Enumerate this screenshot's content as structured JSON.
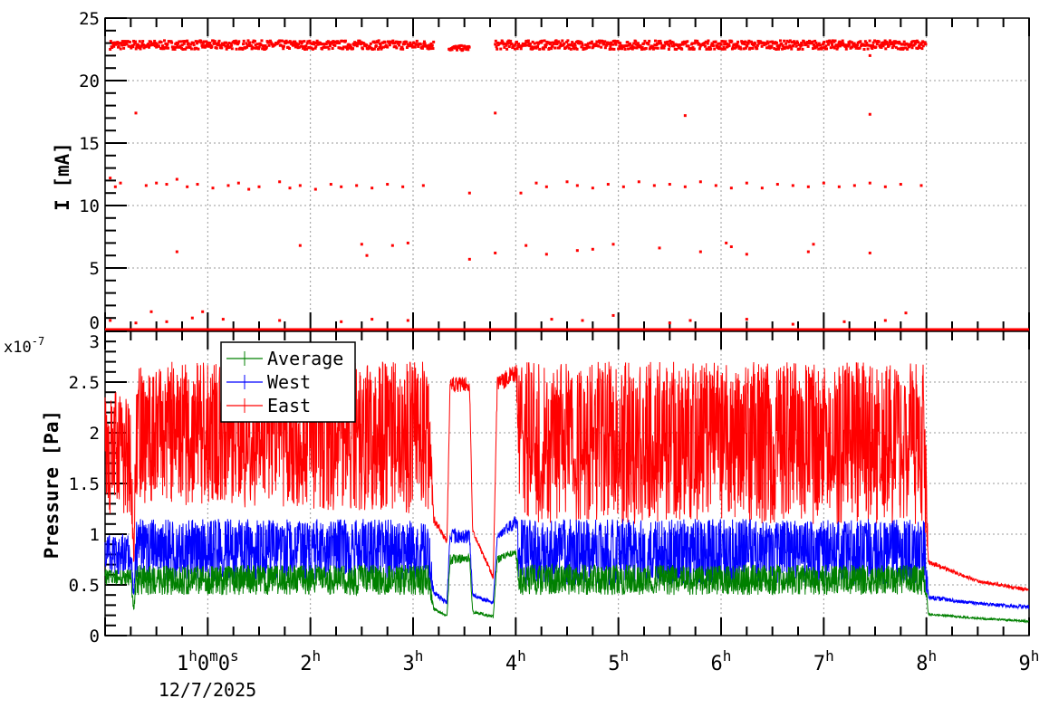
{
  "chart_data": [
    {
      "type": "scatter",
      "ylabel": "I [mA]",
      "xlim": [
        0,
        9
      ],
      "ylim": [
        0,
        25
      ],
      "grid": true,
      "yticks": [
        "0",
        "5",
        "10",
        "15",
        "20",
        "25"
      ],
      "colors": {
        "current": "#ff0000"
      },
      "series": [
        {
          "color": "#ff0000",
          "bands": [
            {
              "t": [
                0.05,
                3.2
              ],
              "lo": 22.5,
              "hi": 23.2
            },
            {
              "t": [
                3.35,
                3.55
              ],
              "lo": 22.4,
              "hi": 22.8
            },
            {
              "t": [
                3.8,
                8.0
              ],
              "lo": 22.5,
              "hi": 23.2
            }
          ],
          "baseline": {
            "t": [
              0,
              9
            ],
            "value": 0
          },
          "outliers": [
            [
              0.05,
              12.2
            ],
            [
              0.1,
              11.5
            ],
            [
              0.15,
              11.8
            ],
            [
              0.3,
              17.4
            ],
            [
              0.4,
              11.6
            ],
            [
              0.5,
              11.8
            ],
            [
              0.6,
              11.7
            ],
            [
              0.7,
              12.1
            ],
            [
              0.8,
              11.5
            ],
            [
              0.9,
              11.7
            ],
            [
              1.05,
              11.4
            ],
            [
              1.2,
              11.6
            ],
            [
              1.3,
              11.8
            ],
            [
              1.4,
              11.3
            ],
            [
              1.5,
              11.5
            ],
            [
              1.7,
              11.9
            ],
            [
              1.8,
              11.4
            ],
            [
              1.9,
              11.6
            ],
            [
              2.05,
              11.3
            ],
            [
              2.2,
              11.7
            ],
            [
              2.3,
              11.5
            ],
            [
              2.45,
              11.6
            ],
            [
              2.6,
              11.4
            ],
            [
              2.75,
              11.7
            ],
            [
              2.9,
              11.5
            ],
            [
              3.1,
              11.6
            ],
            [
              3.55,
              11.0
            ],
            [
              4.05,
              11.0
            ],
            [
              4.2,
              11.8
            ],
            [
              4.3,
              11.5
            ],
            [
              4.5,
              11.9
            ],
            [
              4.6,
              11.6
            ],
            [
              4.75,
              11.4
            ],
            [
              4.9,
              11.7
            ],
            [
              5.05,
              11.5
            ],
            [
              5.2,
              11.9
            ],
            [
              5.35,
              11.6
            ],
            [
              5.5,
              11.7
            ],
            [
              5.65,
              11.5
            ],
            [
              5.8,
              11.9
            ],
            [
              5.95,
              11.6
            ],
            [
              6.1,
              11.4
            ],
            [
              6.25,
              11.8
            ],
            [
              6.4,
              11.4
            ],
            [
              6.55,
              11.7
            ],
            [
              6.7,
              11.6
            ],
            [
              6.85,
              11.5
            ],
            [
              7.0,
              11.8
            ],
            [
              7.15,
              11.5
            ],
            [
              7.3,
              11.6
            ],
            [
              7.45,
              11.8
            ],
            [
              7.6,
              11.5
            ],
            [
              7.75,
              11.7
            ],
            [
              7.95,
              11.6
            ],
            [
              0.7,
              6.3
            ],
            [
              1.9,
              6.8
            ],
            [
              2.5,
              6.9
            ],
            [
              2.55,
              6.0
            ],
            [
              2.8,
              6.8
            ],
            [
              2.95,
              7.0
            ],
            [
              3.55,
              5.7
            ],
            [
              3.8,
              6.2
            ],
            [
              3.8,
              17.4
            ],
            [
              4.1,
              6.8
            ],
            [
              4.3,
              6.1
            ],
            [
              4.6,
              6.4
            ],
            [
              4.75,
              6.5
            ],
            [
              4.95,
              6.9
            ],
            [
              5.4,
              6.6
            ],
            [
              5.65,
              17.2
            ],
            [
              5.8,
              6.3
            ],
            [
              6.05,
              7.0
            ],
            [
              6.1,
              6.7
            ],
            [
              6.25,
              6.1
            ],
            [
              6.85,
              6.3
            ],
            [
              6.9,
              6.9
            ],
            [
              7.45,
              17.3
            ],
            [
              7.45,
              6.2
            ],
            [
              7.45,
              22.0
            ],
            [
              0.05,
              0.8
            ],
            [
              0.3,
              0.6
            ],
            [
              0.45,
              1.5
            ],
            [
              0.6,
              0.7
            ],
            [
              0.85,
              1.0
            ],
            [
              0.95,
              1.5
            ],
            [
              1.15,
              0.9
            ],
            [
              1.7,
              0.8
            ],
            [
              2.3,
              0.7
            ],
            [
              2.6,
              0.9
            ],
            [
              2.95,
              0.8
            ],
            [
              4.35,
              0.9
            ],
            [
              4.65,
              0.8
            ],
            [
              4.95,
              1.2
            ],
            [
              5.5,
              0.6
            ],
            [
              5.7,
              0.8
            ],
            [
              6.25,
              0.9
            ],
            [
              6.7,
              0.5
            ],
            [
              7.2,
              0.7
            ],
            [
              7.6,
              0.8
            ],
            [
              7.8,
              1.4
            ]
          ]
        }
      ]
    },
    {
      "type": "line",
      "ylabel": "Pressure [Pa]",
      "yexponent": "x10",
      "yexponent_power": "-7",
      "xlim": [
        0,
        9
      ],
      "ylim": [
        0,
        3
      ],
      "grid": true,
      "yticks": [
        "0",
        "0.5",
        "1",
        "1.5",
        "2",
        "2.5",
        "3"
      ],
      "x_unit": "h",
      "xticks": [
        {
          "t": 1,
          "base": "1",
          "sup": "h",
          "rest": "0",
          "sup2": "m",
          "rest2": "0",
          "sup3": "s"
        },
        {
          "t": 2,
          "base": "2",
          "sup": "h"
        },
        {
          "t": 3,
          "base": "3",
          "sup": "h"
        },
        {
          "t": 4,
          "base": "4",
          "sup": "h"
        },
        {
          "t": 5,
          "base": "5",
          "sup": "h"
        },
        {
          "t": 6,
          "base": "6",
          "sup": "h"
        },
        {
          "t": 7,
          "base": "7",
          "sup": "h"
        },
        {
          "t": 8,
          "base": "8",
          "sup": "h"
        },
        {
          "t": 9,
          "base": "9",
          "sup": "h"
        }
      ],
      "date_label": "12/7/2025",
      "legend": {
        "placement": "top-left",
        "entries": [
          "Average",
          "West",
          "East"
        ]
      },
      "series": [
        {
          "name": "East",
          "color": "#ff0000",
          "bands": [
            [
              0,
              1.2,
              2.4
            ],
            [
              0.25,
              1.2,
              2.4
            ],
            [
              0.28,
              0.7,
              0.75
            ],
            [
              0.3,
              1.3,
              2.7
            ],
            [
              3.15,
              1.2,
              2.7
            ],
            [
              3.2,
              1.1,
              1.2
            ],
            [
              3.33,
              0.9,
              0.95
            ],
            [
              3.36,
              2.4,
              2.55
            ],
            [
              3.55,
              2.4,
              2.55
            ],
            [
              3.58,
              1.0,
              1.05
            ],
            [
              3.78,
              0.55,
              0.6
            ],
            [
              3.82,
              2.4,
              2.55
            ],
            [
              4.0,
              2.5,
              2.7
            ],
            [
              4.03,
              1.1,
              2.7
            ],
            [
              7.98,
              1.1,
              2.7
            ],
            [
              8.02,
              0.7,
              0.75
            ],
            [
              8.5,
              0.52,
              0.55
            ],
            [
              9.0,
              0.43,
              0.47
            ]
          ]
        },
        {
          "name": "West",
          "color": "#0000ff",
          "bands": [
            [
              0,
              0.6,
              1.0
            ],
            [
              0.25,
              0.6,
              1.0
            ],
            [
              0.28,
              0.35,
              0.4
            ],
            [
              0.3,
              0.55,
              1.15
            ],
            [
              3.15,
              0.55,
              1.15
            ],
            [
              3.2,
              0.4,
              0.45
            ],
            [
              3.33,
              0.3,
              0.35
            ],
            [
              3.36,
              0.9,
              1.05
            ],
            [
              3.55,
              0.9,
              1.05
            ],
            [
              3.58,
              0.38,
              0.42
            ],
            [
              3.78,
              0.3,
              0.34
            ],
            [
              3.82,
              0.95,
              1.0
            ],
            [
              4.0,
              1.05,
              1.2
            ],
            [
              4.03,
              0.5,
              1.15
            ],
            [
              7.98,
              0.5,
              1.15
            ],
            [
              8.02,
              0.35,
              0.4
            ],
            [
              8.5,
              0.3,
              0.33
            ],
            [
              9.0,
              0.26,
              0.3
            ]
          ]
        },
        {
          "name": "Average",
          "color": "#008000",
          "bands": [
            [
              0,
              0.5,
              0.65
            ],
            [
              0.25,
              0.5,
              0.65
            ],
            [
              0.28,
              0.2,
              0.25
            ],
            [
              0.3,
              0.4,
              0.7
            ],
            [
              3.15,
              0.4,
              0.7
            ],
            [
              3.2,
              0.25,
              0.28
            ],
            [
              3.33,
              0.18,
              0.2
            ],
            [
              3.36,
              0.7,
              0.8
            ],
            [
              3.55,
              0.72,
              0.8
            ],
            [
              3.58,
              0.22,
              0.25
            ],
            [
              3.78,
              0.17,
              0.2
            ],
            [
              3.82,
              0.7,
              0.8
            ],
            [
              4.0,
              0.8,
              0.85
            ],
            [
              4.03,
              0.4,
              0.7
            ],
            [
              7.98,
              0.4,
              0.7
            ],
            [
              8.02,
              0.2,
              0.22
            ],
            [
              8.5,
              0.16,
              0.18
            ],
            [
              9.0,
              0.13,
              0.15
            ]
          ]
        }
      ]
    }
  ]
}
